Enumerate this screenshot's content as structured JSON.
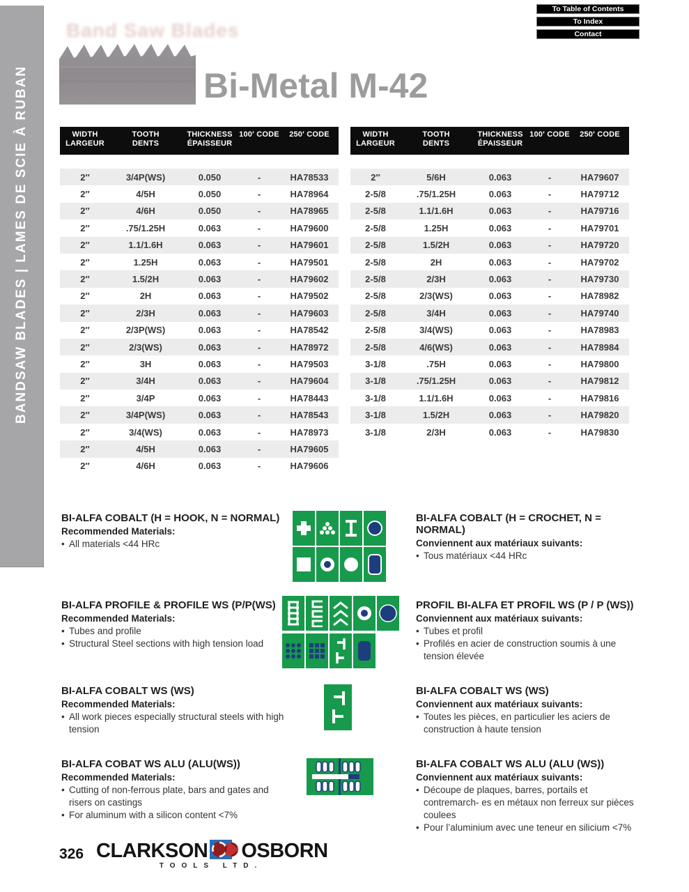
{
  "sidebar": {
    "label": "BANDSAW BLADES   |   LAMES DE SCIE À RUBAN"
  },
  "nav": {
    "buttons": [
      "To Table of Contents",
      "To Index",
      "Contact"
    ]
  },
  "header": {
    "title": "Bi-Metal M-42",
    "watermark": "Band Saw Blades"
  },
  "table_header": {
    "cols": [
      {
        "l1": "WIDTH",
        "l2": "LARGEUR"
      },
      {
        "l1": "TOOTH",
        "l2": "DENTS"
      },
      {
        "l1": "THICKNESS",
        "l2": "ÉPAISSEUR"
      },
      {
        "l1": "100′ CODE",
        "l2": ""
      },
      {
        "l1": "250′ CODE",
        "l2": ""
      }
    ]
  },
  "tables": {
    "left": {
      "rows": [
        [
          "2″",
          "3/4P(WS)",
          "0.050",
          "-",
          "HA78533"
        ],
        [
          "2″",
          "4/5H",
          "0.050",
          "-",
          "HA78964"
        ],
        [
          "2″",
          "4/6H",
          "0.050",
          "-",
          "HA78965"
        ],
        [
          "2″",
          ".75/1.25H",
          "0.063",
          "-",
          "HA79600"
        ],
        [
          "2″",
          "1.1/1.6H",
          "0.063",
          "-",
          "HA79601"
        ],
        [
          "2″",
          "1.25H",
          "0.063",
          "-",
          "HA79501"
        ],
        [
          "2″",
          "1.5/2H",
          "0.063",
          "-",
          "HA79602"
        ],
        [
          "2″",
          "2H",
          "0.063",
          "-",
          "HA79502"
        ],
        [
          "2″",
          "2/3H",
          "0.063",
          "-",
          "HA79603"
        ],
        [
          "2″",
          "2/3P(WS)",
          "0.063",
          "-",
          "HA78542"
        ],
        [
          "2″",
          "2/3(WS)",
          "0.063",
          "-",
          "HA78972"
        ],
        [
          "2″",
          "3H",
          "0.063",
          "-",
          "HA79503"
        ],
        [
          "2″",
          "3/4H",
          "0.063",
          "-",
          "HA79604"
        ],
        [
          "2″",
          "3/4P",
          "0.063",
          "-",
          "HA78443"
        ],
        [
          "2″",
          "3/4P(WS)",
          "0.063",
          "-",
          "HA78543"
        ],
        [
          "2″",
          "3/4(WS)",
          "0.063",
          "-",
          "HA78973"
        ],
        [
          "2″",
          "4/5H",
          "0.063",
          "-",
          "HA79605"
        ],
        [
          "2″",
          "4/6H",
          "0.063",
          "-",
          "HA79606"
        ]
      ]
    },
    "right": {
      "rows": [
        [
          "2″",
          "5/6H",
          "0.063",
          "-",
          "HA79607"
        ],
        [
          "2-5/8",
          ".75/1.25H",
          "0.063",
          "-",
          "HA79712"
        ],
        [
          "2-5/8",
          "1.1/1.6H",
          "0.063",
          "-",
          "HA79716"
        ],
        [
          "2-5/8",
          "1.25H",
          "0.063",
          "-",
          "HA79701"
        ],
        [
          "2-5/8",
          "1.5/2H",
          "0.063",
          "-",
          "HA79720"
        ],
        [
          "2-5/8",
          "2H",
          "0.063",
          "-",
          "HA79702"
        ],
        [
          "2-5/8",
          "2/3H",
          "0.063",
          "-",
          "HA79730"
        ],
        [
          "2-5/8",
          "2/3(WS)",
          "0.063",
          "-",
          "HA78982"
        ],
        [
          "2-5/8",
          "3/4H",
          "0.063",
          "-",
          "HA79740"
        ],
        [
          "2-5/8",
          "3/4(WS)",
          "0.063",
          "-",
          "HA78983"
        ],
        [
          "2-5/8",
          "4/6(WS)",
          "0.063",
          "-",
          "HA78984"
        ],
        [
          "3-1/8",
          ".75H",
          "0.063",
          "-",
          "HA79800"
        ],
        [
          "3-1/8",
          ".75/1.25H",
          "0.063",
          "-",
          "HA79812"
        ],
        [
          "3-1/8",
          "1.1/1.6H",
          "0.063",
          "-",
          "HA79816"
        ],
        [
          "3-1/8",
          "1.5/2H",
          "0.063",
          "-",
          "HA79820"
        ],
        [
          "3-1/8",
          "2/3H",
          "0.063",
          "-",
          "HA79830"
        ]
      ]
    }
  },
  "sections": [
    {
      "en": {
        "title": "BI-ALFA COBALT (H = HOOK, N = NORMAL)",
        "sub": "Recommended Materials:",
        "bullets": [
          "All materials <44 HRc"
        ]
      },
      "fr": {
        "title": "BI-ALFA COBALT (H = CROCHET, N = NORMAL)",
        "sub": "Conviennent aux matériaux suivants:",
        "bullets": [
          "Tous matériaux <44 HRc"
        ]
      }
    },
    {
      "en": {
        "title": "BI-ALFA PROFILE & PROFILE WS (P/P(WS)",
        "sub": "Recommended Materials:",
        "bullets": [
          "Tubes and profile",
          "Structural Steel sections with high tension load"
        ]
      },
      "fr": {
        "title": "PROFIL BI-ALFA ET PROFIL WS (P / P (WS))",
        "sub": "Conviennent aux matériaux suivants:",
        "bullets": [
          "Tubes et profil",
          "Profilés en acier de construction soumis à une tension élevée"
        ]
      }
    },
    {
      "en": {
        "title": "BI-ALFA COBALT WS (WS)",
        "sub": "Recommended Materials:",
        "bullets": [
          "All work pieces especially structural steels with high tension"
        ]
      },
      "fr": {
        "title": "BI-ALFA COBALT WS (WS)",
        "sub": "Conviennent aux matériaux suivants:",
        "bullets": [
          "Toutes les pièces, en particulier les aciers de construction à haute tension"
        ]
      }
    },
    {
      "en": {
        "title": "BI-ALFA COBAT WS ALU (ALU(WS))",
        "sub": "Recommended Materials:",
        "bullets": [
          "Cutting of non-ferrous plate, bars and gates and risers on castings",
          "For aluminum with a silicon content <7%"
        ]
      },
      "fr": {
        "title": "BI-ALFA COBALT WS ALU (ALU (WS))",
        "sub": "Conviennent aux matériaux suivants:",
        "bullets": [
          "Découpe de plaques, barres, portails et contremarch- es en métaux non ferreux sur pièces coulees",
          "Pour l’aluminium avec une teneur en silicium <7%"
        ]
      }
    }
  ],
  "footer": {
    "page_number": "326",
    "brand_left": "CLARKSON",
    "brand_right": "OSBORN",
    "brand_sub": "TOOLS LTD."
  },
  "colors": {
    "tile_green": "#179a4b",
    "tile_blue": "#1d3e7d",
    "header_black": "#0d0d0d",
    "title_gray": "#9c9c9c"
  }
}
